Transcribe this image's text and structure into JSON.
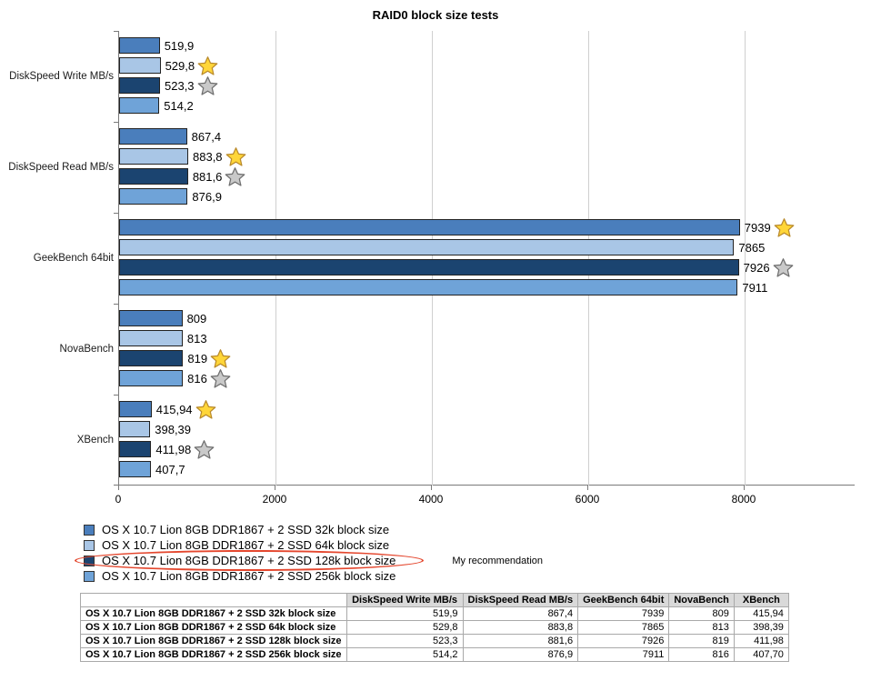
{
  "chart_data": {
    "type": "bar",
    "orientation": "horizontal",
    "title": "RAID0 block size tests",
    "categories": [
      "DiskSpeed Write MB/s",
      "DiskSpeed Read MB/s",
      "GeekBench 64bit",
      "NovaBench",
      "XBench"
    ],
    "series": [
      {
        "name": "OS X 10.7 Lion 8GB DDR1867 + 2 SSD 32k block size",
        "color": "#4a7ebc",
        "values": [
          519.9,
          867.4,
          7939,
          809,
          415.94
        ],
        "labels": [
          "519,9",
          "867,4",
          "7939",
          "809",
          "415,94"
        ]
      },
      {
        "name": "OS X 10.7 Lion 8GB DDR1867 + 2 SSD 64k block size",
        "color": "#a9c6e6",
        "values": [
          529.8,
          883.8,
          7865,
          813,
          398.39
        ],
        "labels": [
          "529,8",
          "883,8",
          "7865",
          "813",
          "398,39"
        ]
      },
      {
        "name": "OS X 10.7 Lion 8GB DDR1867 + 2 SSD 128k block size",
        "color": "#1b4470",
        "values": [
          523.3,
          881.6,
          7926,
          819,
          411.98
        ],
        "labels": [
          "523,3",
          "881,6",
          "7926",
          "819",
          "411,98"
        ]
      },
      {
        "name": "OS X 10.7 Lion 8GB DDR1867 + 2 SSD 256k block size",
        "color": "#6fa3d8",
        "values": [
          514.2,
          876.9,
          7911,
          816,
          407.7
        ],
        "labels": [
          "514,2",
          "876,9",
          "7911",
          "816",
          "407,7"
        ]
      }
    ],
    "xlim": [
      0,
      8000
    ],
    "xticks": [
      0,
      2000,
      4000,
      6000,
      8000
    ],
    "grid": true,
    "legend_position": "bottom",
    "stars": {
      "gold": [
        1,
        1,
        0,
        2,
        0
      ],
      "silver": [
        2,
        2,
        2,
        3,
        2
      ]
    }
  },
  "legend": {
    "note": "My recommendation",
    "highlighted_index": 2
  },
  "colors": {
    "grid": "#cfcfcf",
    "axis": "#7a7a7a",
    "bar_border": "#222222",
    "star_gold_fill": "#ffd639",
    "star_gold_stroke": "#b98a2c",
    "star_silver_fill": "#c9c9c9",
    "star_silver_stroke": "#6f6f6f",
    "ellipse": "#e4472e",
    "table_header_bg": "#d9d9d9"
  },
  "table": {
    "headers": [
      "",
      "DiskSpeed Write MB/s",
      "DiskSpeed Read MB/s",
      "GeekBench 64bit",
      "NovaBench",
      "XBench"
    ],
    "rows": [
      {
        "label": "OS X 10.7 Lion 8GB DDR1867 + 2 SSD 32k block size",
        "values": [
          "519,9",
          "867,4",
          "7939",
          "809",
          "415,94"
        ]
      },
      {
        "label": "OS X 10.7 Lion 8GB DDR1867 + 2 SSD 64k block size",
        "values": [
          "529,8",
          "883,8",
          "7865",
          "813",
          "398,39"
        ]
      },
      {
        "label": "OS X 10.7 Lion 8GB DDR1867 + 2 SSD 128k block size",
        "values": [
          "523,3",
          "881,6",
          "7926",
          "819",
          "411,98"
        ]
      },
      {
        "label": "OS X 10.7 Lion 8GB DDR1867 + 2 SSD 256k block size",
        "values": [
          "514,2",
          "876,9",
          "7911",
          "816",
          "407,70"
        ]
      }
    ]
  }
}
